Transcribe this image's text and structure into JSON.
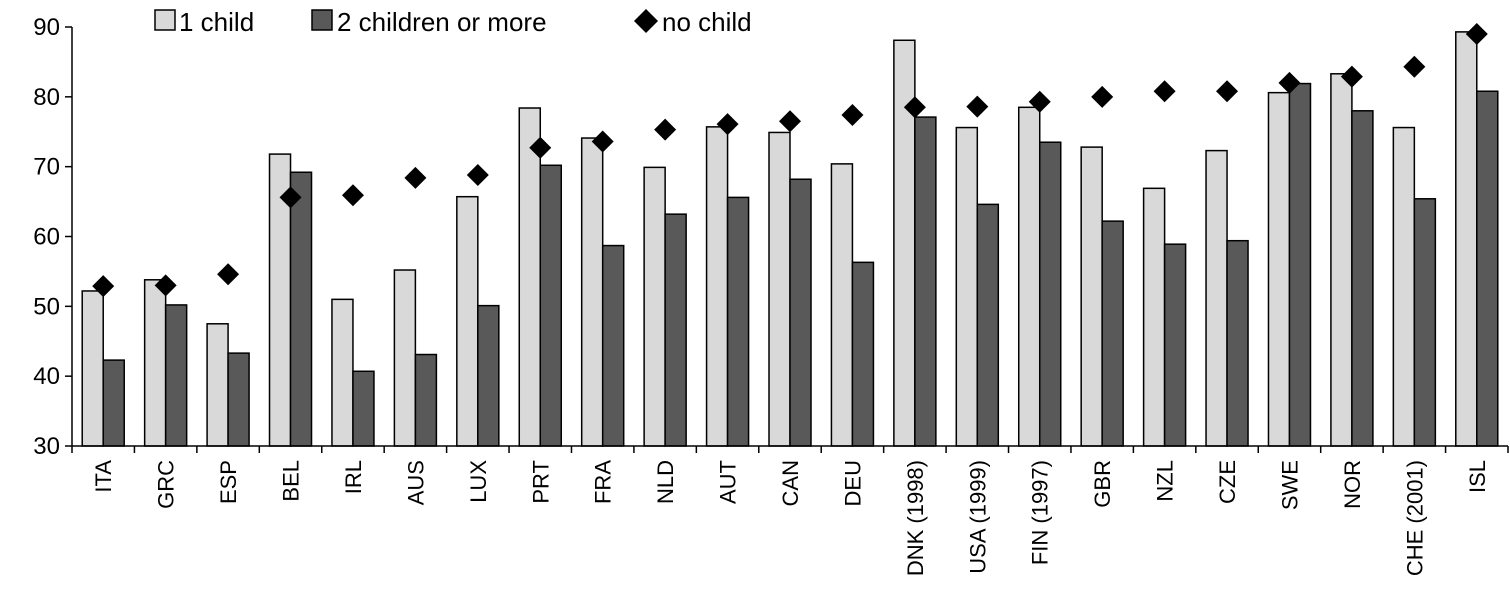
{
  "chart_data": {
    "type": "bar",
    "categories": [
      "ITA",
      "GRC",
      "ESP",
      "BEL",
      "IRL",
      "AUS",
      "LUX",
      "PRT",
      "FRA",
      "NLD",
      "AUT",
      "CAN",
      "DEU",
      "DNK (1998)",
      "USA (1999)",
      "FIN (1997)",
      "GBR",
      "NZL",
      "CZE",
      "SWE",
      "NOR",
      "CHE (2001)",
      "ISL"
    ],
    "series": [
      {
        "name": "1 child",
        "kind": "bar",
        "color": "#d9d9d9",
        "values": [
          52.2,
          53.8,
          47.5,
          71.8,
          51.0,
          55.2,
          65.7,
          78.4,
          74.1,
          69.9,
          75.7,
          74.9,
          70.4,
          88.1,
          75.6,
          78.5,
          72.8,
          66.9,
          72.3,
          80.6,
          83.3,
          75.6,
          89.3
        ]
      },
      {
        "name": "2 children or more",
        "kind": "bar",
        "color": "#595959",
        "values": [
          42.3,
          50.2,
          43.3,
          69.2,
          40.7,
          43.1,
          50.1,
          70.2,
          58.7,
          63.2,
          65.6,
          68.2,
          56.3,
          77.1,
          64.6,
          73.5,
          62.2,
          58.9,
          59.4,
          81.9,
          78.0,
          65.4,
          80.8
        ]
      },
      {
        "name": "no child",
        "kind": "marker",
        "color": "#000000",
        "values": [
          52.9,
          53.0,
          54.6,
          65.6,
          65.9,
          68.4,
          68.8,
          72.7,
          73.6,
          75.3,
          76.1,
          76.5,
          77.4,
          78.5,
          78.6,
          79.3,
          80.0,
          80.8,
          80.8,
          82.0,
          82.9,
          84.3,
          89.0
        ]
      }
    ],
    "yticks": [
      30,
      40,
      50,
      60,
      70,
      80,
      90
    ],
    "ylim": [
      30,
      90
    ],
    "legend_position": "top-left",
    "grid": false
  }
}
